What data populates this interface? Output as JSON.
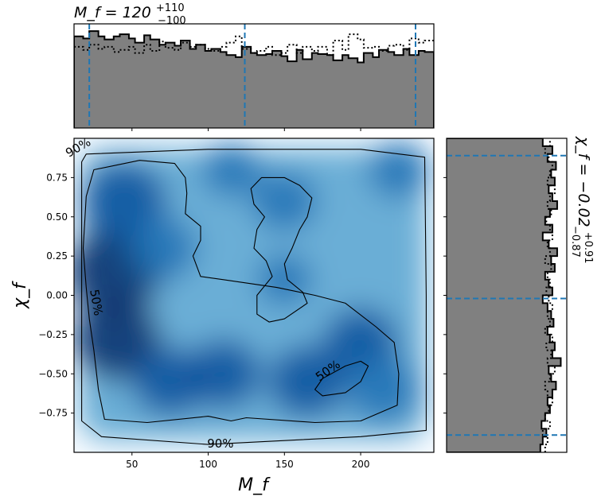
{
  "chart_data": {
    "type": "heatmap",
    "colors": {
      "hist_fill": "#808080",
      "hist_edge": "#000000",
      "quantile_line": "#1f77b4",
      "contour": "#000000",
      "density_low": "#f7fbff",
      "density_high": "#08306b"
    },
    "joint": {
      "xlabel": "M_f",
      "ylabel": "χ_f",
      "xlim": [
        12,
        248
      ],
      "ylim": [
        -1.0,
        1.0
      ],
      "xticks": [
        50,
        100,
        150,
        200
      ],
      "yticks": [
        -0.75,
        -0.5,
        -0.25,
        0.0,
        0.25,
        0.5,
        0.75
      ],
      "xtick_labels": [
        "50",
        "100",
        "150",
        "200"
      ],
      "ytick_labels": [
        "−0.75",
        "−0.50",
        "−0.25",
        "0.00",
        "0.25",
        "0.50",
        "0.75"
      ],
      "density_peaks": [
        {
          "x": 38,
          "y": 0.15,
          "w": 1.0
        },
        {
          "x": 40,
          "y": -0.28,
          "w": 0.9
        },
        {
          "x": 45,
          "y": 0.6,
          "w": 0.85
        },
        {
          "x": 70,
          "y": 0.3,
          "w": 0.6
        },
        {
          "x": 75,
          "y": -0.55,
          "w": 0.7
        },
        {
          "x": 110,
          "y": -0.5,
          "w": 0.7
        },
        {
          "x": 150,
          "y": 0.6,
          "w": 0.55
        },
        {
          "x": 150,
          "y": 0.1,
          "w": 0.4
        },
        {
          "x": 165,
          "y": -0.55,
          "w": 0.75
        },
        {
          "x": 200,
          "y": -0.3,
          "w": 0.7
        },
        {
          "x": 215,
          "y": -0.6,
          "w": 0.65
        },
        {
          "x": 225,
          "y": 0.8,
          "w": 0.5
        },
        {
          "x": 115,
          "y": 0.8,
          "w": 0.45
        }
      ],
      "contour_labels": [
        {
          "text": "90%",
          "x": 16,
          "y": 0.92
        },
        {
          "text": "50%",
          "x": 24,
          "y": -0.05
        },
        {
          "text": "50%",
          "x": 180,
          "y": -0.5
        },
        {
          "text": "90%",
          "x": 108,
          "y": -0.97
        }
      ],
      "contour_90": [
        [
          20,
          0.9
        ],
        [
          100,
          0.93
        ],
        [
          200,
          0.93
        ],
        [
          242,
          0.88
        ],
        [
          243,
          0
        ],
        [
          243,
          -0.86
        ],
        [
          200,
          -0.9
        ],
        [
          100,
          -0.95
        ],
        [
          30,
          -0.9
        ],
        [
          17,
          -0.8
        ],
        [
          17,
          0.85
        ]
      ],
      "contour_50_outer": [
        [
          20,
          0.63
        ],
        [
          25,
          0.8
        ],
        [
          55,
          0.86
        ],
        [
          78,
          0.84
        ],
        [
          85,
          0.75
        ],
        [
          86,
          0.65
        ],
        [
          85,
          0.52
        ],
        [
          95,
          0.44
        ],
        [
          95,
          0.35
        ],
        [
          90,
          0.25
        ],
        [
          95,
          0.12
        ],
        [
          110,
          0.1
        ],
        [
          145,
          0.05
        ],
        [
          170,
          0.0
        ],
        [
          190,
          -0.05
        ],
        [
          210,
          -0.2
        ],
        [
          222,
          -0.3
        ],
        [
          225,
          -0.5
        ],
        [
          224,
          -0.7
        ],
        [
          200,
          -0.8
        ],
        [
          170,
          -0.81
        ],
        [
          125,
          -0.78
        ],
        [
          115,
          -0.8
        ],
        [
          100,
          -0.77
        ],
        [
          60,
          -0.81
        ],
        [
          32,
          -0.79
        ],
        [
          28,
          -0.6
        ],
        [
          25,
          -0.35
        ],
        [
          22,
          -0.15
        ],
        [
          20,
          0.05
        ],
        [
          18,
          0.3
        ],
        [
          20,
          0.63
        ]
      ],
      "contour_50_inner_blob": [
        [
          128,
          0.68
        ],
        [
          135,
          0.75
        ],
        [
          150,
          0.75
        ],
        [
          160,
          0.7
        ],
        [
          168,
          0.62
        ],
        [
          165,
          0.5
        ],
        [
          160,
          0.42
        ],
        [
          155,
          0.3
        ],
        [
          150,
          0.2
        ],
        [
          152,
          0.1
        ],
        [
          162,
          0.02
        ],
        [
          165,
          -0.05
        ],
        [
          150,
          -0.15
        ],
        [
          140,
          -0.17
        ],
        [
          132,
          -0.12
        ],
        [
          132,
          0.0
        ],
        [
          142,
          0.12
        ],
        [
          138,
          0.22
        ],
        [
          130,
          0.3
        ],
        [
          132,
          0.42
        ],
        [
          137,
          0.5
        ],
        [
          130,
          0.58
        ],
        [
          128,
          0.68
        ]
      ],
      "contour_50_small": [
        [
          170,
          -0.6
        ],
        [
          175,
          -0.53
        ],
        [
          190,
          -0.45
        ],
        [
          200,
          -0.42
        ],
        [
          205,
          -0.45
        ],
        [
          200,
          -0.55
        ],
        [
          190,
          -0.62
        ],
        [
          175,
          -0.64
        ],
        [
          170,
          -0.6
        ]
      ]
    },
    "top_marginal": {
      "title_base": "M_f = 120",
      "title_upper": "+110",
      "title_lower": "−100",
      "quantiles": [
        22,
        124,
        236
      ],
      "bins": [
        12,
        18,
        22,
        28,
        32,
        38,
        42,
        48,
        52,
        58,
        62,
        68,
        72,
        78,
        82,
        88,
        92,
        98,
        102,
        108,
        112,
        118,
        122,
        128,
        132,
        138,
        142,
        148,
        152,
        158,
        162,
        168,
        172,
        178,
        182,
        188,
        192,
        198,
        202,
        208,
        212,
        218,
        222,
        228,
        232,
        238,
        242,
        248
      ],
      "posterior": [
        0.88,
        0.86,
        0.93,
        0.88,
        0.85,
        0.88,
        0.9,
        0.86,
        0.82,
        0.89,
        0.85,
        0.8,
        0.82,
        0.79,
        0.84,
        0.76,
        0.8,
        0.74,
        0.76,
        0.73,
        0.7,
        0.68,
        0.78,
        0.72,
        0.7,
        0.71,
        0.74,
        0.69,
        0.64,
        0.75,
        0.66,
        0.72,
        0.71,
        0.7,
        0.65,
        0.7,
        0.67,
        0.63,
        0.72,
        0.68,
        0.75,
        0.73,
        0.7,
        0.76,
        0.7,
        0.74,
        0.73
      ],
      "prior": [
        0.78,
        0.75,
        0.8,
        0.76,
        0.78,
        0.73,
        0.75,
        0.78,
        0.72,
        0.8,
        0.74,
        0.83,
        0.77,
        0.75,
        0.82,
        0.78,
        0.8,
        0.76,
        0.74,
        0.78,
        0.82,
        0.88,
        0.76,
        0.72,
        0.74,
        0.78,
        0.7,
        0.72,
        0.8,
        0.72,
        0.78,
        0.74,
        0.78,
        0.7,
        0.84,
        0.75,
        0.9,
        0.85,
        0.77,
        0.78,
        0.74,
        0.79,
        0.8,
        0.75,
        0.86,
        0.82,
        0.84
      ]
    },
    "right_marginal": {
      "title_base": "χ_f = −0.02",
      "title_upper": "+0.91",
      "title_lower": "−0.87",
      "quantiles": [
        -0.89,
        -0.02,
        0.89
      ],
      "bins": [
        -1.0,
        -0.95,
        -0.9,
        -0.85,
        -0.8,
        -0.75,
        -0.7,
        -0.65,
        -0.6,
        -0.55,
        -0.5,
        -0.45,
        -0.4,
        -0.35,
        -0.3,
        -0.25,
        -0.2,
        -0.15,
        -0.1,
        -0.05,
        0.0,
        0.05,
        0.1,
        0.15,
        0.2,
        0.25,
        0.3,
        0.35,
        0.4,
        0.45,
        0.5,
        0.55,
        0.6,
        0.65,
        0.7,
        0.75,
        0.8,
        0.85,
        0.9,
        0.95,
        1.0
      ],
      "posterior": [
        0.78,
        0.8,
        0.83,
        0.79,
        0.82,
        0.86,
        0.84,
        0.88,
        0.91,
        0.87,
        0.85,
        0.95,
        0.88,
        0.9,
        0.86,
        0.84,
        0.89,
        0.87,
        0.84,
        0.8,
        0.88,
        0.85,
        0.82,
        0.9,
        0.87,
        0.92,
        0.85,
        0.8,
        0.88,
        0.82,
        0.86,
        0.92,
        0.88,
        0.85,
        0.9,
        0.87,
        0.91,
        0.84,
        0.88,
        0.8
      ],
      "prior": [
        0.82,
        0.84,
        0.8,
        0.86,
        0.82,
        0.85,
        0.88,
        0.84,
        0.82,
        0.86,
        0.9,
        0.84,
        0.87,
        0.83,
        0.88,
        0.82,
        0.86,
        0.84,
        0.88,
        0.85,
        0.83,
        0.86,
        0.84,
        0.87,
        0.82,
        0.86,
        0.84,
        0.88,
        0.86,
        0.83,
        0.87,
        0.84,
        0.86,
        0.9,
        0.84,
        0.86,
        0.88,
        0.85,
        0.82,
        0.86
      ]
    }
  }
}
